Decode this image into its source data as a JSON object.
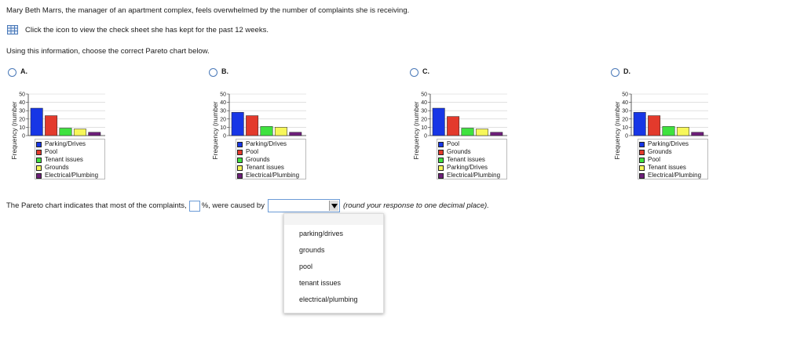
{
  "question": {
    "line1": "Mary Beth Marrs, the manager of an apartment complex, feels overwhelmed by the number of complaints she is receiving.",
    "line2": "Click the icon to view the check sheet she has kept for the past 12 weeks.",
    "line3": "Using this information, choose the correct Pareto chart below.",
    "icon": "spreadsheet-icon"
  },
  "colors": {
    "blue": "#1736e6",
    "red": "#e33a2c",
    "green": "#3fe23f",
    "yellow": "#f7f75a",
    "purple": "#6e1f7a",
    "accent": "#4a79b8"
  },
  "options": [
    {
      "label": "A.",
      "ylabel": "Frequency (number",
      "ticks": [
        "50",
        "40",
        "30",
        "20",
        "10",
        "0"
      ],
      "legend": [
        "Parking/Drives",
        "Pool",
        "Tenant issues",
        "Grounds",
        "Electrical/Plumbing"
      ]
    },
    {
      "label": "B.",
      "ylabel": "Frequency (number",
      "ticks": [
        "50",
        "40",
        "30",
        "20",
        "10",
        "0"
      ],
      "legend": [
        "Parking/Drives",
        "Pool",
        "Grounds",
        "Tenant issues",
        "Electrical/Plumbing"
      ]
    },
    {
      "label": "C.",
      "ylabel": "Frequency (number",
      "ticks": [
        "50",
        "40",
        "30",
        "20",
        "10",
        "0"
      ],
      "legend": [
        "Pool",
        "Grounds",
        "Tenant issues",
        "Parking/Drives",
        "Electrical/Plumbing"
      ]
    },
    {
      "label": "D.",
      "ylabel": "Frequency (number",
      "ticks": [
        "50",
        "40",
        "30",
        "20",
        "10",
        "0"
      ],
      "legend": [
        "Parking/Drives",
        "Grounds",
        "Pool",
        "Tenant issues",
        "Electrical/Plumbing"
      ]
    }
  ],
  "chart_data": [
    {
      "type": "bar",
      "ylim": [
        0,
        50
      ],
      "categories": [
        "Parking/Drives",
        "Pool",
        "Tenant issues",
        "Grounds",
        "Electrical/Plumbing"
      ],
      "values": [
        33,
        24,
        9,
        8,
        4
      ],
      "colors": [
        "#1736e6",
        "#e33a2c",
        "#3fe23f",
        "#f7f75a",
        "#6e1f7a"
      ],
      "grid": true,
      "legend": "bottom"
    },
    {
      "type": "bar",
      "ylim": [
        0,
        50
      ],
      "categories": [
        "Parking/Drives",
        "Pool",
        "Grounds",
        "Tenant issues",
        "Electrical/Plumbing"
      ],
      "values": [
        28,
        24,
        11,
        10,
        4
      ],
      "colors": [
        "#1736e6",
        "#e33a2c",
        "#3fe23f",
        "#f7f75a",
        "#6e1f7a"
      ],
      "grid": true,
      "legend": "bottom"
    },
    {
      "type": "bar",
      "ylim": [
        0,
        50
      ],
      "categories": [
        "Pool",
        "Grounds",
        "Tenant issues",
        "Parking/Drives",
        "Electrical/Plumbing"
      ],
      "values": [
        33,
        23,
        9,
        8,
        4
      ],
      "colors": [
        "#1736e6",
        "#e33a2c",
        "#3fe23f",
        "#f7f75a",
        "#6e1f7a"
      ],
      "grid": true,
      "legend": "bottom"
    },
    {
      "type": "bar",
      "ylim": [
        0,
        50
      ],
      "categories": [
        "Parking/Drives",
        "Grounds",
        "Pool",
        "Tenant issues",
        "Electrical/Plumbing"
      ],
      "values": [
        28,
        24,
        11,
        10,
        4
      ],
      "colors": [
        "#1736e6",
        "#e33a2c",
        "#3fe23f",
        "#f7f75a",
        "#6e1f7a"
      ],
      "grid": true,
      "legend": "bottom"
    }
  ],
  "answer": {
    "before": "The Pareto chart indicates that most of the complaints,",
    "pct_value": "",
    "after": "%, were caused by",
    "select_value": "",
    "hint": "(round your response to one decimal place)."
  },
  "dropdown": {
    "options": [
      "parking/drives",
      "grounds",
      "pool",
      "tenant issues",
      "electrical/plumbing"
    ]
  }
}
